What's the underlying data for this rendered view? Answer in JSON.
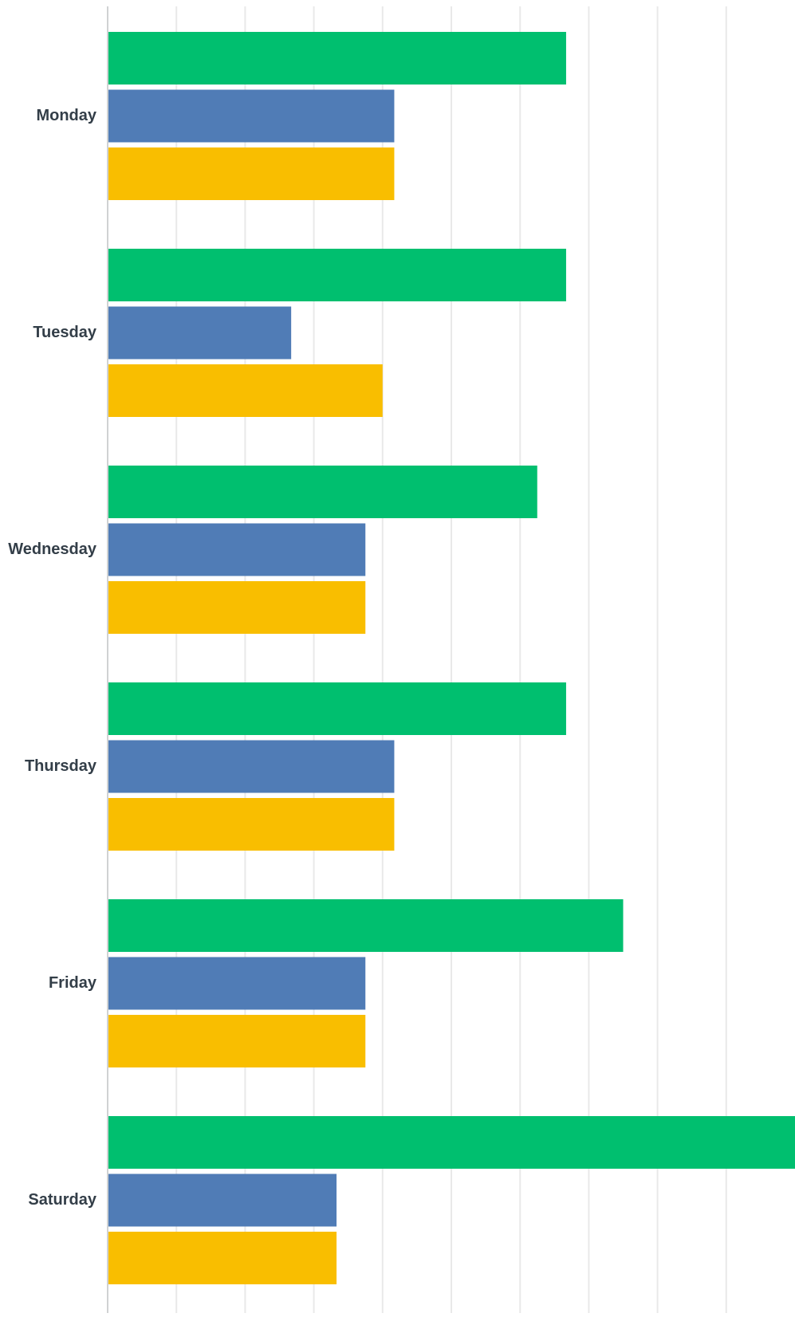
{
  "chart_data": {
    "type": "bar",
    "orientation": "horizontal",
    "categories": [
      "Monday",
      "Tuesday",
      "Wednesday",
      "Thursday",
      "Friday",
      "Saturday"
    ],
    "series": [
      {
        "values": [
          6.67,
          6.67,
          6.25,
          6.67,
          7.5,
          10.0
        ]
      },
      {
        "values": [
          4.17,
          2.67,
          3.75,
          4.17,
          3.75,
          3.33
        ]
      },
      {
        "values": [
          4.17,
          4.0,
          3.75,
          4.17,
          3.75,
          3.33
        ]
      }
    ],
    "xlim": [
      0,
      10
    ],
    "grid": true,
    "colors": {
      "series": [
        "#00bf6f",
        "#507cb6",
        "#f9be00"
      ],
      "grid": "#e9e9e9",
      "axis": "#d0d2d3",
      "label": "#333e48"
    }
  }
}
